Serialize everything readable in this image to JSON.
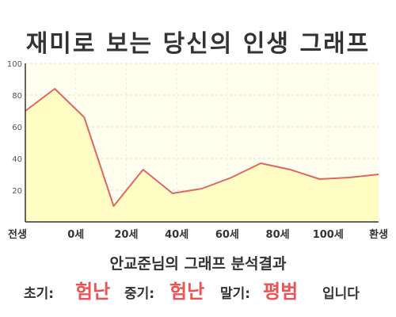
{
  "title": "재미로 보는 당신의 인생 그래프",
  "chart_data": {
    "type": "area",
    "y_ticks": [
      100,
      80,
      60,
      40,
      20
    ],
    "ylim": [
      0,
      100
    ],
    "x_tick_labels": [
      "전생",
      "0세",
      "20세",
      "40세",
      "60세",
      "80세",
      "100세",
      "환생"
    ],
    "values": [
      70,
      84,
      66,
      10,
      33,
      18,
      21,
      28,
      37,
      33,
      27,
      28,
      30
    ],
    "line_color": "#e06666",
    "fill_color": "#fffdc4",
    "grid": true
  },
  "result": {
    "subtitle": "안교준님의 그래프 분석결과",
    "early_label": "초기:",
    "early_value": "험난",
    "middle_label": "중기:",
    "middle_value": "험난",
    "late_label": "말기:",
    "late_value": "평범",
    "suffix": "입니다"
  }
}
